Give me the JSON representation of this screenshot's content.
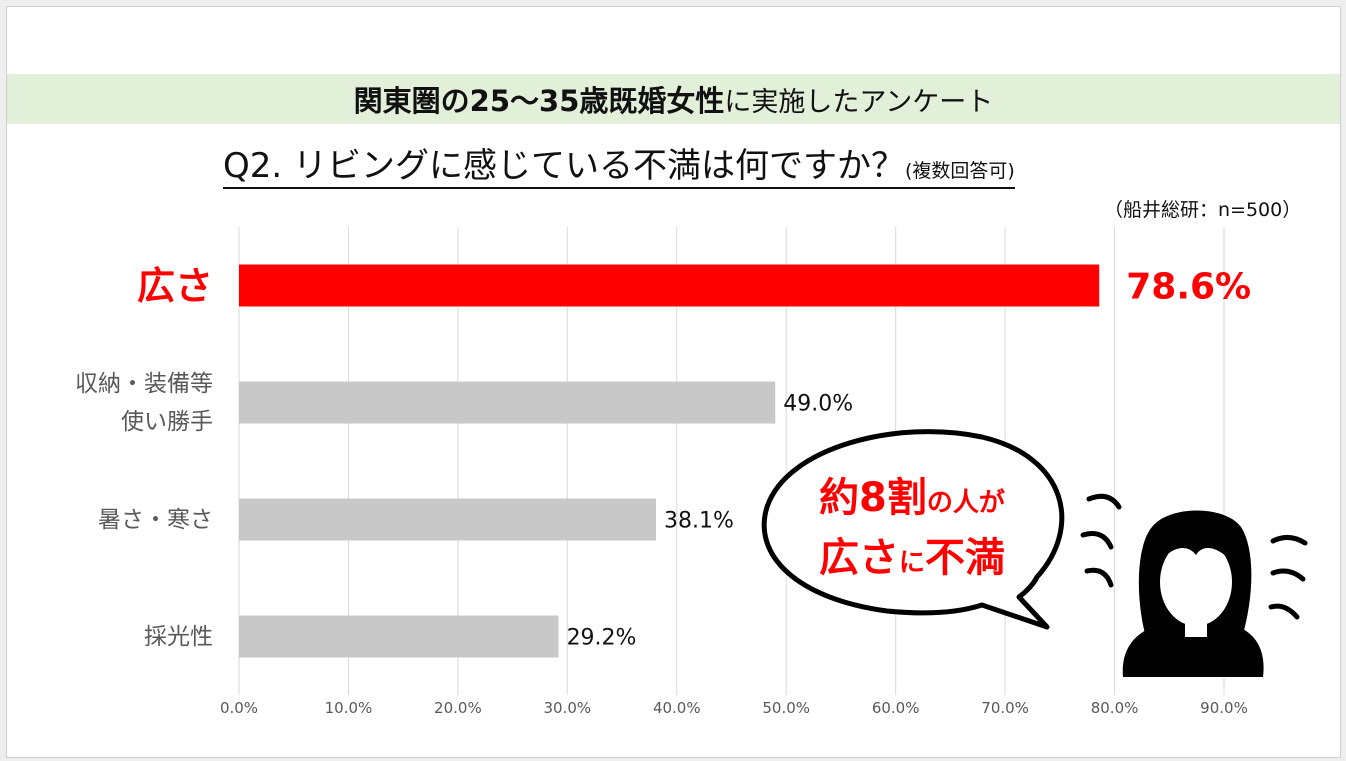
{
  "header": {
    "title_strong": "関東圏の25〜35歳既婚女性",
    "title_light": "に実施したアンケート"
  },
  "question": {
    "main": "Q2. リビングに感じている不満は何ですか？",
    "note": "(複数回答可)"
  },
  "source": "（船井総研：n=500）",
  "callout": {
    "line1_a": "約8割",
    "line1_b": "の人が",
    "line2_a": "広さ",
    "line2_b": "に",
    "line2_c": "不満"
  },
  "chart_data": {
    "type": "bar",
    "orientation": "horizontal",
    "categories": [
      "広さ",
      "収納・装備等\n使い勝手",
      "暑さ・寒さ",
      "採光性"
    ],
    "category_lines": [
      [
        "広さ"
      ],
      [
        "収納・装備等",
        "使い勝手"
      ],
      [
        "暑さ・寒さ"
      ],
      [
        "採光性"
      ]
    ],
    "values": [
      78.6,
      49.0,
      38.1,
      29.2
    ],
    "data_labels": [
      "78.6%",
      "49.0%",
      "38.1%",
      "29.2%"
    ],
    "highlight_index": 0,
    "xlim": [
      0,
      90
    ],
    "x_ticks": [
      0,
      10,
      20,
      30,
      40,
      50,
      60,
      70,
      80,
      90
    ],
    "x_tick_labels": [
      "0.0%",
      "10.0%",
      "20.0%",
      "30.0%",
      "40.0%",
      "50.0%",
      "60.0%",
      "70.0%",
      "80.0%",
      "90.0%"
    ],
    "grid": "vertical",
    "legend": "none",
    "colors": {
      "highlight": "#ff0000",
      "default": "#c8c8c8",
      "grid": "#d9d9d9"
    }
  }
}
